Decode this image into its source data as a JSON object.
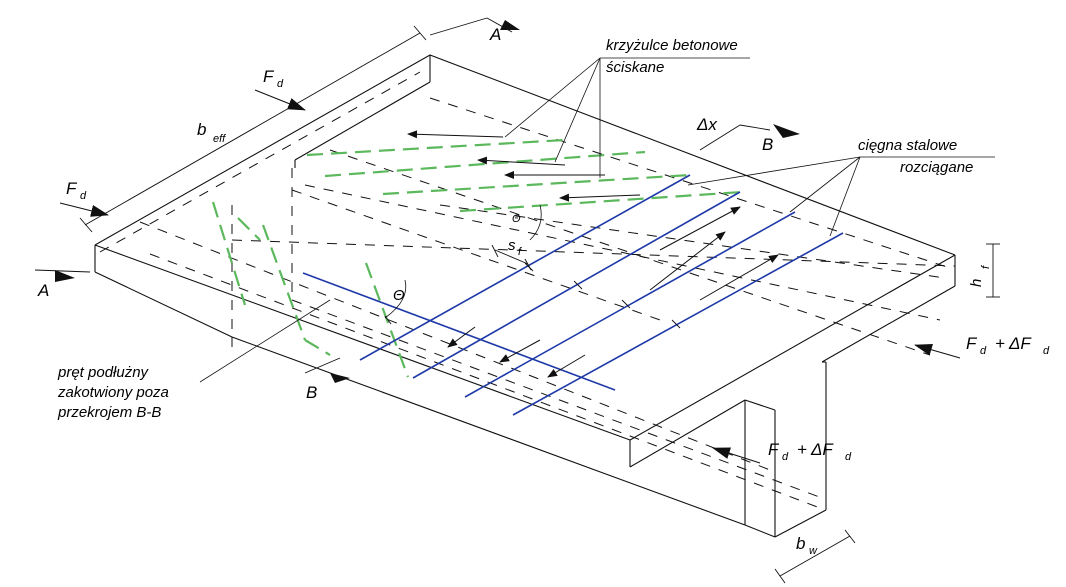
{
  "labels": {
    "struts_line1": "krzyżulce betonowe",
    "struts_line2": "ściskane",
    "ties_line1": "cięgna stalowe",
    "ties_line2": "rozciągane",
    "bar_line1": "pręt podłużny",
    "bar_line2": "zakotwiony poza",
    "bar_line3": "przekrojem B-B",
    "section_A_top": "A",
    "section_A_left": "A",
    "section_B_top": "B",
    "section_B_bottom": "B",
    "Fd_top_main": "F",
    "Fd_top_sub": "d",
    "Fd_left_main": "F",
    "Fd_left_sub": "d",
    "beff_main": "b",
    "beff_sub": "eff",
    "dx": "Δx",
    "theta_upper": "Θ",
    "theta_lower": "Θ",
    "sf_main": "s",
    "sf_sub": "f",
    "hf_main": "h",
    "hf_sub": "f",
    "right_force_F": "F",
    "right_force_d1": "d",
    "right_force_plus": "+ ΔF",
    "right_force_d2": "d",
    "lower_force_F": "F",
    "lower_force_d1": "d",
    "lower_force_plus": "+ ΔF",
    "lower_force_d2": "d",
    "bw_main": "b",
    "bw_sub": "w"
  },
  "colors": {
    "struts": "#5cb85c",
    "ties": "#1f3aa8",
    "lines": "#111111"
  }
}
